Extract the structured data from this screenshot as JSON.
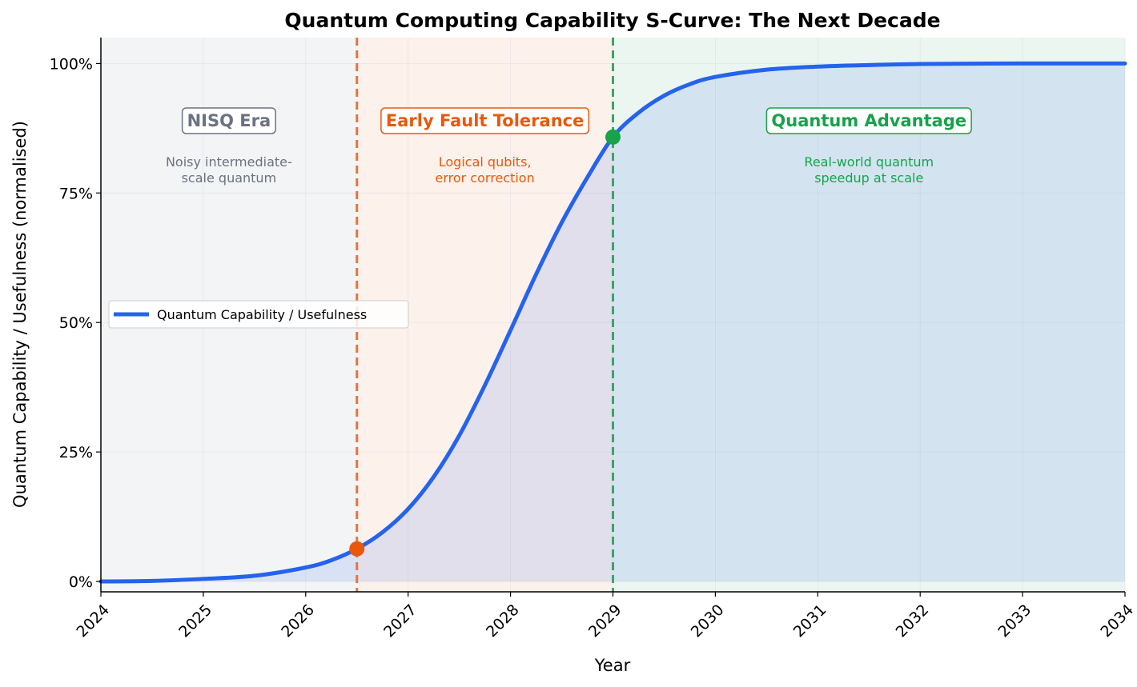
{
  "chart_data": {
    "type": "line",
    "title": "Quantum Computing Capability S-Curve: The Next Decade",
    "xlabel": "Year",
    "ylabel": "Quantum Capability / Usefulness (normalised)",
    "xlim": [
      2024,
      2034
    ],
    "ylim": [
      -2,
      105
    ],
    "x_ticks": [
      2024,
      2025,
      2026,
      2027,
      2028,
      2029,
      2030,
      2031,
      2032,
      2033,
      2034
    ],
    "x_tick_labels": [
      "2024",
      "2025",
      "2026",
      "2027",
      "2028",
      "2029",
      "2030",
      "2031",
      "2032",
      "2033",
      "2034"
    ],
    "y_ticks": [
      0,
      25,
      50,
      75,
      100
    ],
    "y_tick_labels": [
      "0%",
      "25%",
      "50%",
      "75%",
      "100%"
    ],
    "grid": true,
    "legend_position": "center-left",
    "series": [
      {
        "name": "Quantum Capability / Usefulness",
        "color": "#2563eb",
        "x": [
          2024,
          2024.5,
          2025,
          2025.5,
          2026,
          2026.25,
          2026.5,
          2026.75,
          2027,
          2027.25,
          2027.5,
          2027.75,
          2028,
          2028.25,
          2028.5,
          2028.75,
          2029,
          2029.25,
          2029.5,
          2029.75,
          2030,
          2030.5,
          2031,
          2031.5,
          2032,
          2033,
          2034
        ],
        "values": [
          0.0,
          0.1,
          0.5,
          1.1,
          2.7,
          4.1,
          6.3,
          9.5,
          14.0,
          20.2,
          28.2,
          37.9,
          48.5,
          59.3,
          69.3,
          78.0,
          85.8,
          90.5,
          93.8,
          96.0,
          97.4,
          98.8,
          99.4,
          99.7,
          99.9,
          100.0,
          100.0
        ]
      }
    ],
    "phases": [
      {
        "name": "NISQ Era",
        "description": [
          "Noisy intermediate-",
          "scale quantum"
        ],
        "x_start": 2024,
        "x_end": 2026.5,
        "color": "#6b7280",
        "bg": "#f3f4f6"
      },
      {
        "name": "Early Fault Tolerance",
        "description": [
          "Logical qubits,",
          "error correction"
        ],
        "x_start": 2026.5,
        "x_end": 2029,
        "color": "#ea580c",
        "bg": "#fdf1ec"
      },
      {
        "name": "Quantum Advantage",
        "description": [
          "Real-world quantum",
          "speedup at scale"
        ],
        "x_start": 2029,
        "x_end": 2034,
        "color": "#16a34a",
        "bg": "#ecf6f1"
      }
    ],
    "milestones": [
      {
        "x": 2026.5,
        "y": 6.3,
        "color": "#ea580c",
        "line_color": "#e8733c"
      },
      {
        "x": 2029,
        "y": 85.8,
        "color": "#16a34a",
        "line_color": "#3aa566"
      }
    ]
  }
}
